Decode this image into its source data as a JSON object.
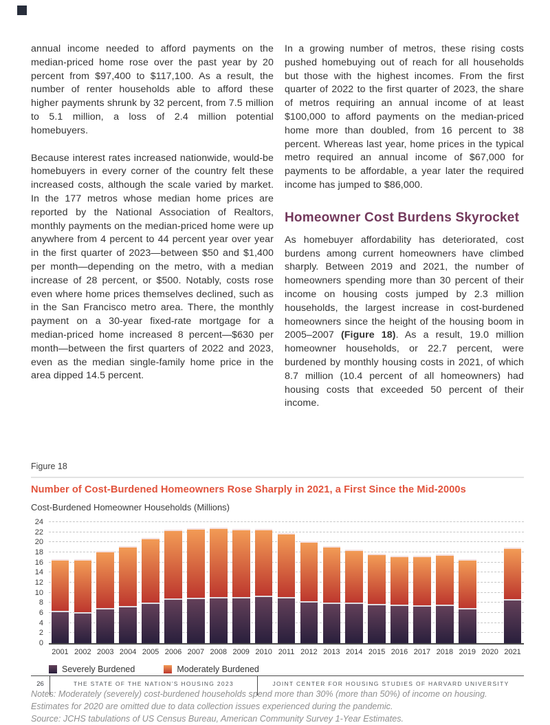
{
  "page": {
    "corner_marker_color": "#272d3b",
    "accent_title_color": "#e2533c",
    "heading_color": "#73395c"
  },
  "columns": {
    "left": {
      "p1": "annual income needed to afford payments on the median-priced home rose over the past year by 20 percent from $97,400 to $117,100. As a result, the number of renter households able to afford these higher payments shrunk by 32 percent, from 7.5 million to 5.1 million, a loss of 2.4 million potential homebuyers.",
      "p2": "Because interest rates increased nationwide, would-be homebuyers in every corner of the country felt these increased costs, although the scale varied by market. In the 177 metros whose median home prices are reported by the National Association of Realtors, monthly payments on the median-priced home were up anywhere from 4 percent to 44 percent year over year in the first quarter of 2023—between $50 and $1,400 per month—depending on the metro, with a median increase of 28 percent, or $500. Notably, costs rose even where home prices themselves declined, such as in the San Francisco metro area. There, the monthly payment on a 30-year fixed-rate mortgage for a median-priced home increased 8 percent—$630 per month—between the first quarters of 2022 and 2023, even as the median single-family home price in the area dipped 14.5 percent."
    },
    "right": {
      "p1": "In a growing number of metros, these rising costs pushed homebuying out of reach for all households but those with the highest incomes. From the first quarter of 2022 to the first quarter of 2023, the share of metros requiring an annual income of at least $100,000 to afford payments on the median-priced home more than doubled, from 16 percent to 38 percent. Whereas last year, home prices in the typical metro required an annual income of $67,000 for payments to be affordable, a year later the required income has jumped to $86,000.",
      "heading": "Homeowner Cost Burdens Skyrocket",
      "p2_pre": "As homebuyer affordability has deteriorated, cost burdens among current homeowners have climbed sharply. Between 2019 and 2021, the number of homeowners spending more than 30 percent of their income on housing costs jumped by 2.3 million households, the largest increase in cost-burdened homeowners since the height of the housing boom in 2005–2007 ",
      "p2_bold": "(Figure 18)",
      "p2_post": ". As a result, 19.0 million homeowner households, or 22.7 percent, were burdened by monthly housing costs in 2021, of which 8.7 million (10.4 percent of all homeowners) had housing costs that exceeded 50 percent of their income."
    }
  },
  "figure": {
    "label": "Figure 18",
    "title": "Number of Cost-Burdened Homeowners Rose Sharply in 2021, a First Since the Mid-2000s",
    "subtitle": "Cost-Burdened Homeowner Households (Millions)",
    "notes": "Notes: Moderately (severely) cost-burdened households spend more than 30% (more than 50%) of income on housing. Estimates for 2020 are omitted due to data collection issues experienced during the pandemic.",
    "source": "Source: JCHS tabulations of US Census Bureau, American Community Survey 1-Year Estimates."
  },
  "chart_data": {
    "type": "bar",
    "stacked": true,
    "title": "Number of Cost-Burdened Homeowners Rose Sharply in 2021, a First Since the Mid-2000s",
    "ylabel": "Cost-Burdened Homeowner Households (Millions)",
    "xlabel": "",
    "ylim": [
      0,
      24
    ],
    "ytick_step": 2,
    "grid": "horizontal-dashed",
    "legend_position": "bottom-left",
    "missing_categories_note": "2020 omitted",
    "categories": [
      "2001",
      "2002",
      "2003",
      "2004",
      "2005",
      "2006",
      "2007",
      "2008",
      "2009",
      "2010",
      "2011",
      "2012",
      "2013",
      "2014",
      "2015",
      "2016",
      "2017",
      "2018",
      "2019",
      "2020",
      "2021"
    ],
    "series": [
      {
        "name": "Severely Burdened",
        "color_top": "#634059",
        "color_bottom": "#291f3c",
        "values": [
          6.4,
          6.2,
          7.0,
          7.4,
          8.1,
          8.9,
          9.0,
          9.2,
          9.1,
          9.4,
          9.2,
          8.4,
          8.1,
          8.0,
          7.8,
          7.6,
          7.5,
          7.7,
          7.0,
          null,
          8.7
        ]
      },
      {
        "name": "Moderately Burdened",
        "color_top": "#f29b55",
        "color_bottom": "#bd372e",
        "values": [
          10.3,
          10.4,
          11.3,
          11.9,
          12.8,
          13.6,
          13.8,
          13.7,
          13.5,
          13.3,
          12.7,
          11.8,
          11.2,
          10.6,
          10.0,
          9.8,
          9.9,
          9.9,
          9.7,
          null,
          10.3
        ]
      }
    ],
    "totals": [
      16.7,
      16.6,
      18.3,
      19.3,
      20.9,
      22.5,
      22.8,
      22.9,
      22.6,
      22.7,
      21.9,
      20.2,
      19.3,
      18.6,
      17.8,
      17.4,
      17.4,
      17.6,
      16.7,
      null,
      19.0
    ]
  },
  "legend": {
    "severe_label": "Severely Burdened",
    "moderate_label": "Moderately Burdened"
  },
  "footer": {
    "page_number": "26",
    "left_text": "THE STATE OF THE NATION’S HOUSING 2023",
    "right_text": "JOINT CENTER FOR HOUSING STUDIES OF HARVARD UNIVERSITY"
  }
}
